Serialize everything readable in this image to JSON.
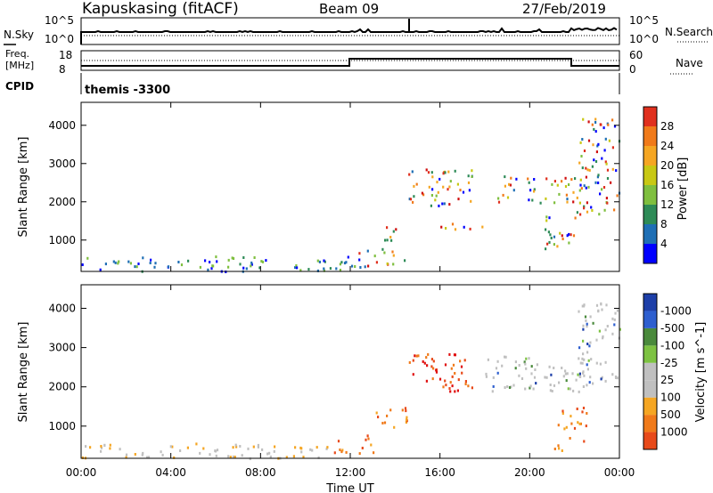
{
  "header": {
    "station": "Kapuskasing (fitACF)",
    "beam": "Beam 09",
    "date": "27/Feb/2019"
  },
  "panel_labels": {
    "nsky": "N.Sky",
    "nsearch": "N.Search",
    "freq_line1": "Freq.",
    "freq_line2": "[MHz]",
    "nave": "Nave",
    "cpid": "CPID",
    "cpid_value": "themis -3300"
  },
  "noise_axis": {
    "top": "10^5",
    "bottom": "10^0"
  },
  "freq_axis": {
    "left": [
      "18",
      "8"
    ],
    "right": [
      "60",
      "0"
    ]
  },
  "colors": {
    "power": [
      "#0000ff",
      "#1f6fb5",
      "#2e8b57",
      "#7fbf3f",
      "#c8c814",
      "#f5a623",
      "#f07a1a",
      "#e0301e",
      "#d01010"
    ],
    "velocity": [
      "#1d3fa8",
      "#2e5fcf",
      "#4a8a3c",
      "#7dc242",
      "#c0c0c0",
      "#c0c0c0",
      "#f5a623",
      "#f07a1a",
      "#e84a1a",
      "#e01010"
    ]
  },
  "chart_data": [
    {
      "type": "heatmap",
      "name": "power",
      "xlabel": "Time UT",
      "ylabel": "Slant Range [km]",
      "x_ticks": [
        "00:00",
        "04:00",
        "08:00",
        "12:00",
        "16:00",
        "20:00",
        "00:00"
      ],
      "xlim_hours": [
        0,
        24
      ],
      "y_ticks": [
        1000,
        2000,
        3000,
        4000
      ],
      "ylim_km": [
        180,
        4600
      ],
      "colorbar": {
        "label": "Power [dB]",
        "ticks": [
          4,
          8,
          12,
          16,
          20,
          24,
          28
        ],
        "range": [
          0,
          30
        ]
      },
      "echo_regions": [
        {
          "t": [
            0.0,
            12.0
          ],
          "r": [
            200,
            600
          ],
          "level": "low",
          "note": "near-range scatter"
        },
        {
          "t": [
            12.0,
            14.5
          ],
          "r": [
            300,
            800
          ]
        },
        {
          "t": [
            13.0,
            14.0
          ],
          "r": [
            1000,
            1400
          ]
        },
        {
          "t": [
            14.5,
            17.5
          ],
          "r": [
            1900,
            2900
          ]
        },
        {
          "t": [
            16.0,
            18.0
          ],
          "r": [
            1300,
            1600
          ]
        },
        {
          "t": [
            18.5,
            22.5
          ],
          "r": [
            2000,
            2700
          ]
        },
        {
          "t": [
            20.5,
            22.0
          ],
          "r": [
            800,
            1800
          ]
        },
        {
          "t": [
            22.0,
            24.0
          ],
          "r": [
            1700,
            4200
          ]
        }
      ]
    },
    {
      "type": "heatmap",
      "name": "velocity",
      "xlabel": "Time UT",
      "ylabel": "Slant Range [km]",
      "x_ticks": [
        "00:00",
        "04:00",
        "08:00",
        "12:00",
        "16:00",
        "20:00",
        "00:00"
      ],
      "xlim_hours": [
        0,
        24
      ],
      "y_ticks": [
        1000,
        2000,
        3000,
        4000
      ],
      "ylim_km": [
        180,
        4600
      ],
      "colorbar": {
        "label": "Velocity [m s^-1]",
        "ticks": [
          "1000",
          "500",
          "100",
          "25",
          "-25",
          "-100",
          "-500",
          "-1000"
        ]
      },
      "echo_regions": [
        {
          "t": [
            0.0,
            11.0
          ],
          "r": [
            200,
            600
          ],
          "sign": "neg-small"
        },
        {
          "t": [
            11.0,
            13.0
          ],
          "r": [
            300,
            800
          ],
          "sign": "neg"
        },
        {
          "t": [
            13.0,
            14.5
          ],
          "r": [
            1000,
            1500
          ],
          "sign": "neg"
        },
        {
          "t": [
            14.5,
            17.5
          ],
          "r": [
            1900,
            2900
          ],
          "sign": "neg-large"
        },
        {
          "t": [
            18.0,
            22.5
          ],
          "r": [
            1900,
            2800
          ],
          "sign": "zero"
        },
        {
          "t": [
            22.0,
            24.0
          ],
          "r": [
            2000,
            4200
          ],
          "sign": "zero"
        },
        {
          "t": [
            21.0,
            22.5
          ],
          "r": [
            400,
            1500
          ],
          "sign": "neg"
        }
      ]
    }
  ]
}
